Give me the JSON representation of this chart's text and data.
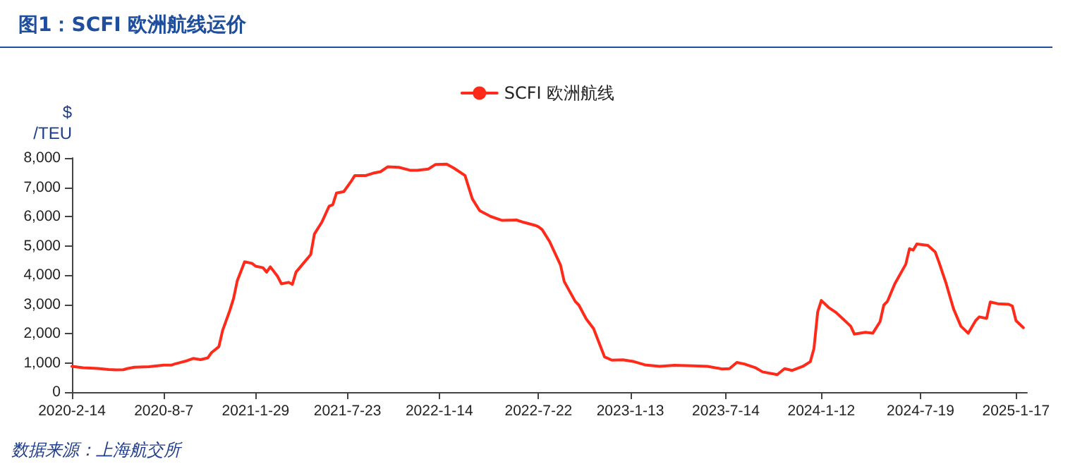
{
  "chart_data": {
    "type": "line",
    "title": "图1：SCFI 欧洲航线运价",
    "ylabel": "$\n/TEU",
    "annotations": [
      "数据来源：上海航交所"
    ],
    "legend": "top",
    "marker": "none",
    "line_style": "solid",
    "grid": false,
    "xlim": [
      "2020-02-14",
      "2025-02-07"
    ],
    "xticks": [
      {
        "value": "2020-02-14",
        "label": "2020-2-14"
      },
      {
        "value": "2020-08-07",
        "label": "2020-8-7"
      },
      {
        "value": "2021-01-29",
        "label": "2021-1-29"
      },
      {
        "value": "2021-07-23",
        "label": "2021-7-23"
      },
      {
        "value": "2022-01-14",
        "label": "2022-1-14"
      },
      {
        "value": "2022-07-22",
        "label": "2022-7-22"
      },
      {
        "value": "2023-01-13",
        "label": "2023-1-13"
      },
      {
        "value": "2023-07-14",
        "label": "2023-7-14"
      },
      {
        "value": "2024-01-12",
        "label": "2024-1-12"
      },
      {
        "value": "2024-07-19",
        "label": "2024-7-19"
      },
      {
        "value": "2025-01-17",
        "label": "2025-1-17"
      }
    ],
    "ylim": [
      0,
      8000
    ],
    "yticks": [
      0,
      {
        "value": 1000,
        "label": "1,000"
      },
      {
        "value": 2000,
        "label": "2,000"
      },
      {
        "value": 3000,
        "label": "3,000"
      },
      {
        "value": 4000,
        "label": "4,000"
      },
      {
        "value": 5000,
        "label": "5,000"
      },
      {
        "value": 6000,
        "label": "6,000"
      },
      {
        "value": 7000,
        "label": "7,000"
      },
      {
        "value": 8000,
        "label": "8,000"
      }
    ],
    "x": [
      "2020-02-14",
      "2020-03-06",
      "2020-04-03",
      "2020-04-24",
      "2020-05-08",
      "2020-05-22",
      "2020-05-29",
      "2020-06-12",
      "2020-07-10",
      "2020-08-07",
      "2020-08-21",
      "2020-08-28",
      "2020-09-18",
      "2020-10-02",
      "2020-10-16",
      "2020-10-30",
      "2020-11-06",
      "2020-11-20",
      "2020-11-27",
      "2020-12-11",
      "2020-12-18",
      "2020-12-25",
      "2021-01-08",
      "2021-01-22",
      "2021-01-29",
      "2021-02-12",
      "2021-02-19",
      "2021-02-26",
      "2021-03-12",
      "2021-03-19",
      "2021-04-02",
      "2021-04-09",
      "2021-04-16",
      "2021-04-30",
      "2021-05-14",
      "2021-05-21",
      "2021-06-04",
      "2021-06-18",
      "2021-06-25",
      "2021-07-02",
      "2021-07-16",
      "2021-07-30",
      "2021-08-06",
      "2021-08-27",
      "2021-09-10",
      "2021-09-24",
      "2021-10-08",
      "2021-10-29",
      "2021-11-19",
      "2021-12-03",
      "2021-12-24",
      "2022-01-07",
      "2022-01-28",
      "2022-02-11",
      "2022-03-04",
      "2022-03-18",
      "2022-04-01",
      "2022-04-22",
      "2022-05-13",
      "2022-06-10",
      "2022-06-24",
      "2022-07-15",
      "2022-07-22",
      "2022-07-29",
      "2022-08-12",
      "2022-09-02",
      "2022-09-09",
      "2022-09-30",
      "2022-10-07",
      "2022-10-21",
      "2022-11-04",
      "2022-11-25",
      "2022-12-09",
      "2022-12-30",
      "2023-01-20",
      "2023-02-10",
      "2023-03-10",
      "2023-04-07",
      "2023-05-12",
      "2023-06-09",
      "2023-07-07",
      "2023-07-21",
      "2023-08-04",
      "2023-08-18",
      "2023-09-08",
      "2023-09-22",
      "2023-10-20",
      "2023-11-03",
      "2023-11-17",
      "2023-12-08",
      "2023-12-22",
      "2023-12-29",
      "2024-01-05",
      "2024-01-12",
      "2024-01-26",
      "2024-02-09",
      "2024-02-23",
      "2024-03-08",
      "2024-03-15",
      "2024-04-05",
      "2024-04-19",
      "2024-05-03",
      "2024-05-10",
      "2024-05-17",
      "2024-05-31",
      "2024-06-21",
      "2024-06-28",
      "2024-07-05",
      "2024-07-12",
      "2024-08-02",
      "2024-08-16",
      "2024-08-23",
      "2024-09-06",
      "2024-09-20",
      "2024-10-04",
      "2024-10-18",
      "2024-11-01",
      "2024-11-08",
      "2024-11-22",
      "2024-11-29",
      "2024-12-13",
      "2025-01-03",
      "2025-01-10",
      "2025-01-17",
      "2025-01-31"
    ],
    "series": [
      {
        "name": "SCFI 欧洲航线",
        "color": "#ff2a1a",
        "values": [
          880,
          830,
          805,
          770,
          760,
          765,
          800,
          850,
          870,
          920,
          920,
          960,
          1060,
          1150,
          1110,
          1170,
          1350,
          1550,
          2100,
          2800,
          3200,
          3800,
          4450,
          4400,
          4300,
          4250,
          4100,
          4280,
          3950,
          3700,
          3750,
          3680,
          4100,
          4400,
          4700,
          5400,
          5800,
          6350,
          6400,
          6800,
          6850,
          7200,
          7400,
          7400,
          7480,
          7530,
          7700,
          7680,
          7580,
          7580,
          7620,
          7780,
          7790,
          7650,
          7400,
          6600,
          6200,
          6000,
          5870,
          5880,
          5800,
          5700,
          5650,
          5550,
          5150,
          4340,
          3780,
          3100,
          2970,
          2500,
          2170,
          1200,
          1090,
          1100,
          1040,
          930,
          880,
          915,
          900,
          880,
          790,
          800,
          1010,
          960,
          835,
          690,
          595,
          800,
          740,
          880,
          1040,
          1490,
          2730,
          3130,
          2890,
          2720,
          2490,
          2250,
          1980,
          2040,
          2010,
          2410,
          2970,
          3100,
          3700,
          4370,
          4900,
          4850,
          5060,
          5010,
          4790,
          4450,
          3700,
          2840,
          2250,
          2010,
          2440,
          2570,
          2520,
          3080,
          3020,
          3000,
          2940,
          2440,
          2200
        ]
      }
    ]
  }
}
